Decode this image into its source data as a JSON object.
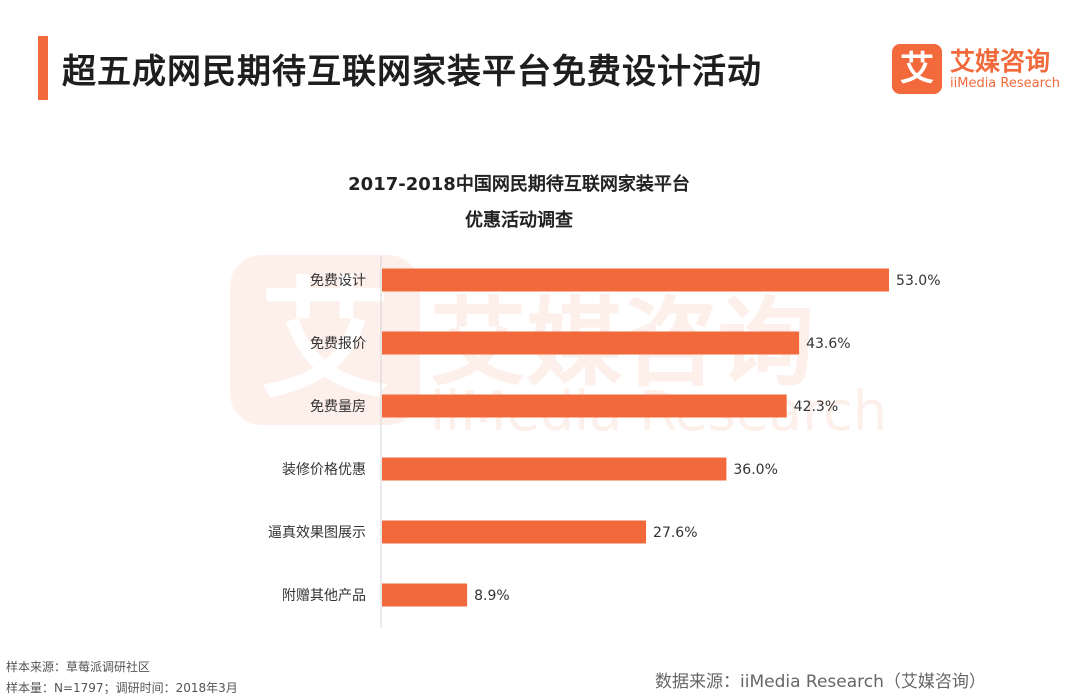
{
  "header": {
    "title": "超五成网民期待互联网家装平台免费设计活动",
    "brand_mark": "艾",
    "brand_name": "艾媒咨询",
    "brand_sub": "iiMedia Research"
  },
  "colors": {
    "accent": "#f26a3b",
    "bar": "#f26a3b"
  },
  "chart_data": {
    "type": "bar",
    "orientation": "horizontal",
    "title": [
      "2017-2018中国网民期待互联网家装平台",
      "优惠活动调查"
    ],
    "categories": [
      "免费设计",
      "免费报价",
      "免费量房",
      "装修价格优惠",
      "逼真效果图展示",
      "附赠其他产品"
    ],
    "values": [
      53.0,
      43.6,
      42.3,
      36.0,
      27.6,
      8.9
    ],
    "value_labels": [
      "53.0%",
      "43.6%",
      "42.3%",
      "36.0%",
      "27.6%",
      "8.9%"
    ],
    "unit": "%",
    "xlim": [
      0,
      60
    ],
    "grid": false,
    "legend": "none"
  },
  "footer": {
    "sample_source": "样本来源：草莓派调研社区",
    "sample_info": "样本量：N=1797；调研时间：2018年3月",
    "data_source": "数据来源：iiMedia Research（艾媒咨询）"
  }
}
